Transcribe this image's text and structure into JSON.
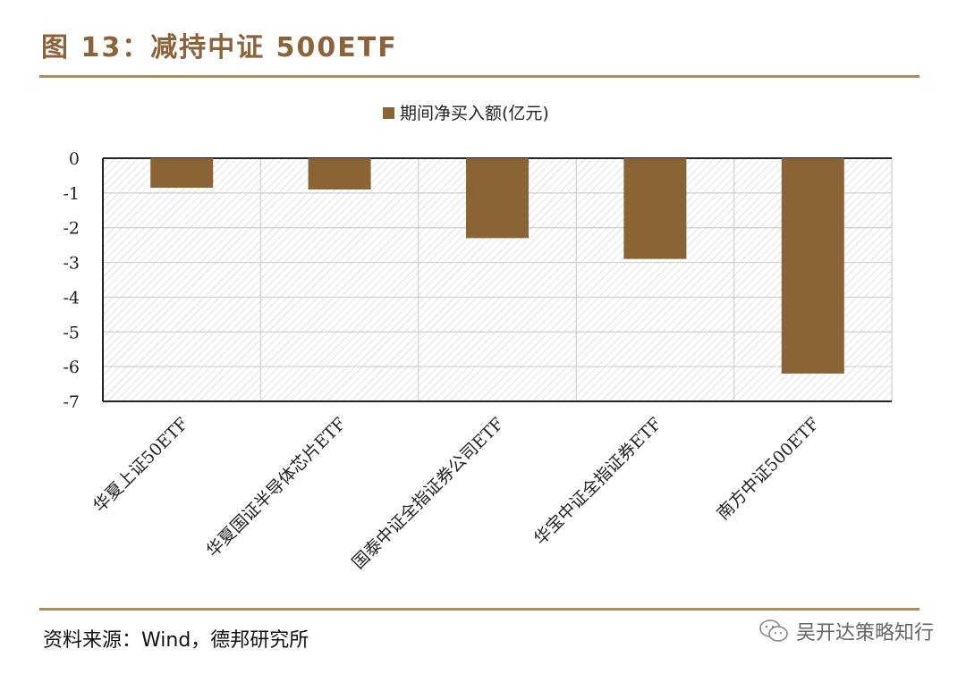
{
  "figure": {
    "title": "图 13：减持中证 500ETF",
    "source": "资料来源：Wind，德邦研究所",
    "watermark": "吴开达策略知行"
  },
  "colors": {
    "bar": "#8b6436",
    "accent": "#8c6239",
    "rule": "#b08a5e"
  },
  "chart_data": {
    "type": "bar",
    "title": "",
    "xlabel": "",
    "ylabel": "",
    "categories": [
      "华夏上证50ETF",
      "华夏国证半导体芯片ETF",
      "国泰中证全指证券公司ETF",
      "华宝中证全指证券ETF",
      "南方中证500ETF"
    ],
    "series": [
      {
        "name": "期间净买入额(亿元)",
        "values": [
          -0.85,
          -0.9,
          -2.3,
          -2.9,
          -6.2
        ]
      }
    ],
    "ylim": [
      -7,
      0
    ],
    "yticks": [
      0,
      -1,
      -2,
      -3,
      -4,
      -5,
      -6,
      -7
    ],
    "grid": true,
    "legend": "top-center"
  }
}
